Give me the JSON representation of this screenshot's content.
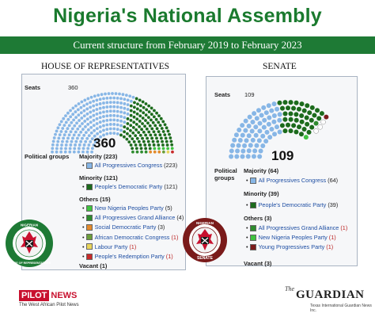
{
  "title": "Nigeria's National Assembly",
  "banner": "Current structure from February 2019 to February 2023",
  "house": {
    "heading": "HOUSE OF REPRESENTATIVES",
    "seats_label": "Seats",
    "seats_value": "360",
    "big_number": "360",
    "groups_label": "Political groups",
    "majority_label": "Majority (223)",
    "minority_label": "Minority (121)",
    "others_label": "Others (15)",
    "vacant_label": "Vacant (1)",
    "majority": [
      {
        "name": "All Progressives Congress",
        "count": "(223)",
        "color": "#87b6e6"
      }
    ],
    "minority": [
      {
        "name": "People's Democratic Party",
        "count": "(121)",
        "color": "#1c6b1c"
      }
    ],
    "others": [
      {
        "name": "New Nigeria Peoples Party",
        "count": "(5)",
        "color": "#3fc33f"
      },
      {
        "name": "All Progressives Grand Alliance",
        "count": "(4)",
        "color": "#2e8b2e"
      },
      {
        "name": "Social Democratic Party",
        "count": "(3)",
        "color": "#e38a2b"
      },
      {
        "name": "African Democratic Congress",
        "count": "(1)",
        "color": "#6b9e3a"
      },
      {
        "name": "Labour Party",
        "count": "(1)",
        "color": "#e8d45a"
      },
      {
        "name": "People's Redemption Party",
        "count": "(1)",
        "color": "#c82a2a"
      }
    ],
    "seal_text_top": "NIGERIAN",
    "seal_text_bottom": "HOUSE OF REPRESENTATIVES"
  },
  "senate": {
    "heading": "SENATE",
    "seats_label": "Seats",
    "seats_value": "109",
    "big_number": "109",
    "groups_label": "Political groups",
    "majority_label": "Majority (64)",
    "minority_label": "Minority (39)",
    "others_label": "Others (3)",
    "vacant_label": "Vacant (3)",
    "majority": [
      {
        "name": "All Progressives Congress",
        "count": "(64)",
        "color": "#87b6e6"
      }
    ],
    "minority": [
      {
        "name": "People's Democratic Party",
        "count": "(39)",
        "color": "#1c6b1c"
      }
    ],
    "others": [
      {
        "name": "All Progressives Grand Alliance",
        "count": "(1)",
        "color": "#2e8b2e"
      },
      {
        "name": "New Nigeria Peoples Party",
        "count": "(1)",
        "color": "#3fc33f"
      },
      {
        "name": "Young Progressives Party",
        "count": "(1)",
        "color": "#7a1a1a"
      }
    ],
    "seal_text_top": "NIGERIAN",
    "seal_text_bottom": "SENATE"
  },
  "footer": {
    "pilot_box": "PILOT",
    "pilot_news": "NEWS",
    "pilot_sub": "The West African Pilot News",
    "guardian_the": "The",
    "guardian": "GUARDIAN",
    "guardian_sub": "Texas International Guardian News Inc."
  },
  "colors": {
    "apc": "#87b6e6",
    "pdp": "#1c6b1c",
    "green": "#1e7a35"
  }
}
